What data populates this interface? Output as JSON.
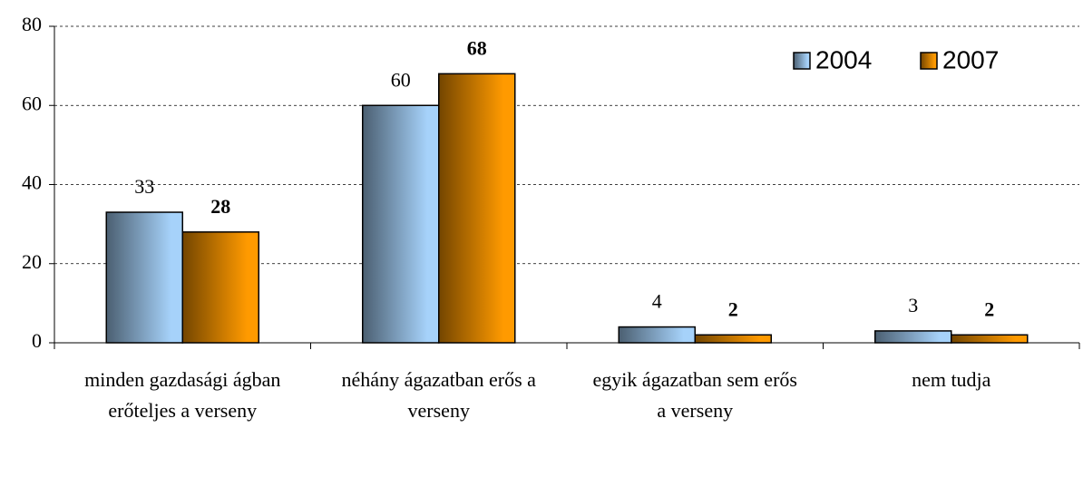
{
  "chart_data": {
    "type": "bar",
    "categories": [
      "minden gazdasági ágban erőteljes a verseny",
      "néhány ágazatban erős a verseny",
      "egyik ágazatban sem erős a verseny",
      "nem tudja"
    ],
    "series": [
      {
        "name": "2004",
        "color": "#a6d2fa",
        "values": [
          33,
          60,
          4,
          3
        ]
      },
      {
        "name": "2007",
        "color": "#ff9a00",
        "values": [
          28,
          68,
          2,
          2
        ]
      }
    ],
    "ylim": [
      0,
      80
    ],
    "yticks": [
      0,
      20,
      40,
      60,
      80
    ],
    "grid": true,
    "legend": "top-right"
  }
}
